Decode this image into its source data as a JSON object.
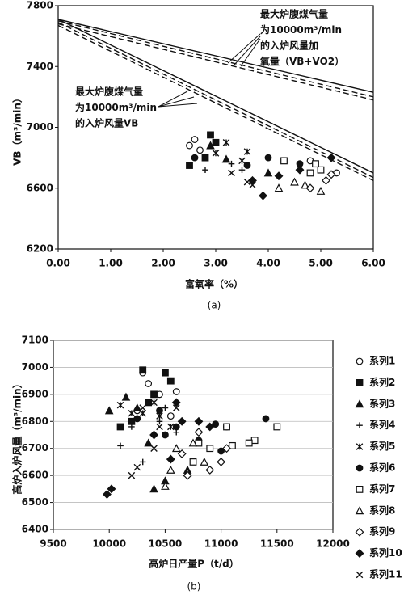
{
  "chart_data": [
    {
      "type": "line",
      "caption": "(a)",
      "x_label": "富氧率（%）",
      "y_label": "VB（m³/min）",
      "xlim": [
        0,
        6
      ],
      "ylim": [
        6200,
        7800
      ],
      "xticks": [
        {
          "value": 0,
          "label": "0.00"
        },
        {
          "value": 1,
          "label": "1.00"
        },
        {
          "value": 2,
          "label": "2.00"
        },
        {
          "value": 3,
          "label": "3.00"
        },
        {
          "value": 4,
          "label": "4.00"
        },
        {
          "value": 5,
          "label": "5.00"
        },
        {
          "value": 6,
          "label": "6.00"
        }
      ],
      "yticks": [
        6200,
        6600,
        7000,
        7400,
        7800
      ],
      "annotations": [
        {
          "lines": [
            "最大炉腹煤气量",
            "为10000m³/min",
            "的入炉风量加",
            "氧量（VB+VO2）"
          ]
        },
        {
          "lines": [
            "最大炉腹煤气量",
            "为10000m³/min",
            "的入炉风量VB"
          ]
        }
      ],
      "series": [
        {
          "type": "line",
          "style": "solid",
          "color": "#111",
          "x": [
            0,
            6
          ],
          "values": [
            7710,
            7230
          ]
        },
        {
          "type": "line",
          "style": "dashed",
          "color": "#111",
          "x": [
            0,
            6
          ],
          "values": [
            7700,
            7200
          ]
        },
        {
          "type": "line",
          "style": "dashed",
          "color": "#111",
          "x": [
            0,
            6
          ],
          "values": [
            7680,
            7180
          ]
        },
        {
          "type": "line",
          "style": "solid",
          "color": "#111",
          "x": [
            0,
            6
          ],
          "values": [
            7710,
            6700
          ]
        },
        {
          "type": "line",
          "style": "dashed",
          "color": "#111",
          "x": [
            0,
            6
          ],
          "values": [
            7690,
            6670
          ]
        },
        {
          "type": "line",
          "style": "dashed",
          "color": "#111",
          "x": [
            0,
            6
          ],
          "values": [
            7670,
            6650
          ]
        },
        {
          "type": "scatter",
          "marker": "circle-open",
          "color": "#111",
          "x": [
            2.5,
            2.6,
            2.7,
            4.8,
            5.3
          ],
          "values": [
            6880,
            6920,
            6850,
            6780,
            6700
          ]
        },
        {
          "type": "scatter",
          "marker": "square-filled",
          "color": "#111",
          "x": [
            2.5,
            2.9,
            3.0,
            2.8
          ],
          "values": [
            6750,
            6950,
            6900,
            6800
          ]
        },
        {
          "type": "scatter",
          "marker": "triangle-filled",
          "color": "#111",
          "x": [
            2.9,
            3.2,
            4.0
          ],
          "values": [
            6880,
            6790,
            6700
          ]
        },
        {
          "type": "scatter",
          "marker": "plus",
          "color": "#111",
          "x": [
            2.8,
            3.3,
            3.5
          ],
          "values": [
            6720,
            6760,
            6720
          ]
        },
        {
          "type": "scatter",
          "marker": "asterisk",
          "color": "#111",
          "x": [
            3.0,
            3.2,
            3.5,
            3.6
          ],
          "values": [
            6830,
            6900,
            6780,
            6840
          ]
        },
        {
          "type": "scatter",
          "marker": "circle-filled",
          "color": "#111",
          "x": [
            2.6,
            3.6,
            4.0,
            4.6
          ],
          "values": [
            6800,
            6750,
            6800,
            6760
          ]
        },
        {
          "type": "scatter",
          "marker": "square-open",
          "color": "#111",
          "x": [
            4.3,
            4.8,
            5.0,
            4.9
          ],
          "values": [
            6780,
            6700,
            6720,
            6760
          ]
        },
        {
          "type": "scatter",
          "marker": "triangle-open",
          "color": "#111",
          "x": [
            4.2,
            4.5,
            4.7,
            5.0
          ],
          "values": [
            6600,
            6640,
            6620,
            6580
          ]
        },
        {
          "type": "scatter",
          "marker": "diamond-open",
          "color": "#111",
          "x": [
            4.8,
            5.1,
            5.2
          ],
          "values": [
            6600,
            6650,
            6690
          ]
        },
        {
          "type": "scatter",
          "marker": "diamond-filled",
          "color": "#111",
          "x": [
            3.9,
            4.2,
            4.6,
            5.2,
            3.7
          ],
          "values": [
            6550,
            6680,
            6720,
            6800,
            6650
          ]
        },
        {
          "type": "scatter",
          "marker": "x",
          "color": "#111",
          "x": [
            3.6,
            3.7,
            3.3
          ],
          "values": [
            6640,
            6620,
            6700
          ]
        }
      ]
    },
    {
      "type": "scatter",
      "caption": "(b)",
      "x_label": "高炉日产量P（t/d）",
      "y_label": "高炉入炉风量（m³/min）",
      "xlim": [
        9500,
        12000
      ],
      "ylim": [
        6400,
        7100
      ],
      "grid": true,
      "xticks": [
        9500,
        10000,
        10500,
        11000,
        11500,
        12000
      ],
      "yticks": [
        6400,
        6500,
        6600,
        6700,
        6800,
        6900,
        7000,
        7100
      ],
      "series": [
        {
          "name": "系列1",
          "marker": "circle-open",
          "color": "#111",
          "x": [
            10300,
            10350,
            10450,
            10600,
            10250,
            10550,
            11050
          ],
          "values": [
            6980,
            6940,
            6900,
            6910,
            6840,
            6820,
            6780
          ]
        },
        {
          "name": "系列2",
          "marker": "square-filled",
          "color": "#111",
          "x": [
            10300,
            10500,
            10200,
            10400,
            10100,
            10550,
            10350
          ],
          "values": [
            6990,
            6980,
            6800,
            6900,
            6780,
            6950,
            6870
          ]
        },
        {
          "name": "系列3",
          "marker": "triangle-filled",
          "color": "#111",
          "x": [
            10000,
            10150,
            10250,
            10500,
            10400,
            10350,
            10700
          ],
          "values": [
            6840,
            6890,
            6850,
            6580,
            6550,
            6720,
            6620
          ]
        },
        {
          "name": "系列4",
          "marker": "plus",
          "color": "#111",
          "x": [
            10100,
            10200,
            10300,
            10450,
            10500,
            10600
          ],
          "values": [
            6710,
            6780,
            6650,
            6800,
            6850,
            6760
          ]
        },
        {
          "name": "系列5",
          "marker": "asterisk",
          "color": "#111",
          "x": [
            10100,
            10300,
            10450,
            10550,
            10200,
            10400
          ],
          "values": [
            6860,
            6830,
            6820,
            6780,
            6830,
            6870
          ]
        },
        {
          "name": "系列6",
          "marker": "circle-filled",
          "color": "#111",
          "x": [
            10250,
            10450,
            10600,
            10800,
            11000,
            11400,
            10950,
            10500
          ],
          "values": [
            6810,
            6840,
            6780,
            6730,
            6690,
            6810,
            6790,
            6750
          ]
        },
        {
          "name": "系列7",
          "marker": "square-open",
          "color": "#111",
          "x": [
            10800,
            10900,
            11050,
            11100,
            11300,
            11500,
            10750,
            11250
          ],
          "values": [
            6720,
            6700,
            6780,
            6710,
            6730,
            6780,
            6650,
            6720
          ]
        },
        {
          "name": "系列8",
          "marker": "triangle-open",
          "color": "#111",
          "x": [
            10500,
            10550,
            10700,
            10750,
            10850,
            10600
          ],
          "values": [
            6560,
            6620,
            6610,
            6720,
            6650,
            6700
          ]
        },
        {
          "name": "系列9",
          "marker": "diamond-open",
          "color": "#111",
          "x": [
            10700,
            10900,
            11000,
            10800,
            11050,
            10650
          ],
          "values": [
            6600,
            6620,
            6650,
            6760,
            6700,
            6680
          ]
        },
        {
          "name": "系列10",
          "marker": "diamond-filled",
          "color": "#111",
          "x": [
            9980,
            10020,
            10400,
            10600,
            10650,
            10800,
            10900,
            10550
          ],
          "values": [
            6530,
            6550,
            6750,
            6870,
            6800,
            6800,
            6780,
            6660
          ]
        },
        {
          "name": "系列11",
          "marker": "x",
          "color": "#111",
          "x": [
            10250,
            10400,
            10600,
            10300,
            10450,
            10200
          ],
          "values": [
            6630,
            6700,
            6850,
            6850,
            6780,
            6600
          ]
        }
      ]
    }
  ]
}
